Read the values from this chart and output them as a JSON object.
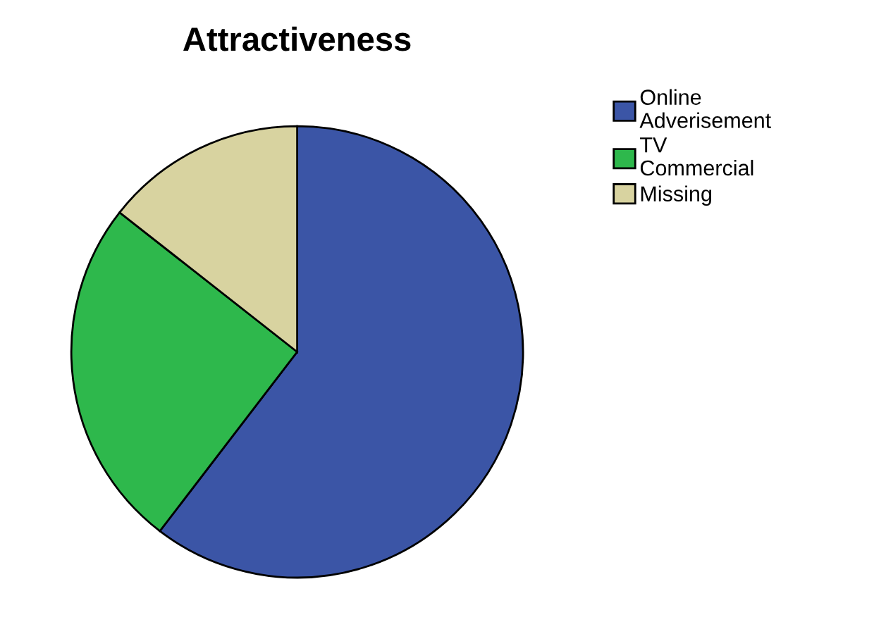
{
  "chart_data": {
    "type": "pie",
    "title": "Attractiveness",
    "categories": [
      "Online\nAdverisement",
      "TV\nCommercial",
      "Missing"
    ],
    "values": [
      60.4,
      25.2,
      14.4
    ],
    "colors": [
      "#3b55a6",
      "#2eb84c",
      "#d8d3a0"
    ],
    "legend": "top right"
  }
}
